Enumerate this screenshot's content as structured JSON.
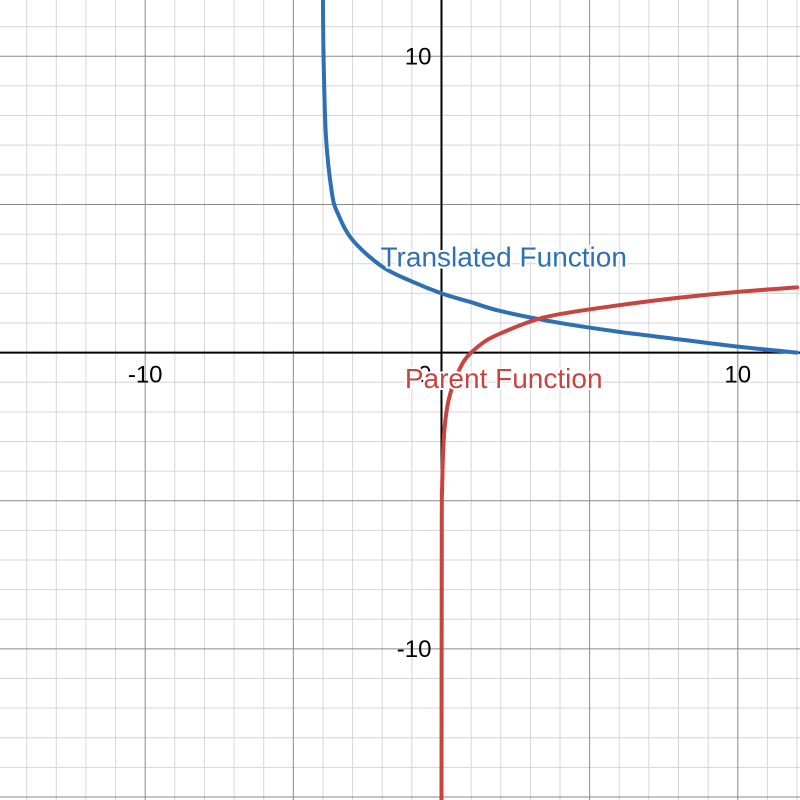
{
  "chart_data": {
    "type": "line",
    "title": "",
    "xlabel": "",
    "ylabel": "",
    "xlim": [
      -14.9,
      12.1
    ],
    "ylim": [
      -15.1,
      11.9
    ],
    "grid": true,
    "x_ticks": [
      {
        "value": -10,
        "label": "-10"
      },
      {
        "value": 0,
        "label": "0"
      },
      {
        "value": 10,
        "label": "10"
      }
    ],
    "y_ticks": [
      {
        "value": 10,
        "label": "10"
      },
      {
        "value": -10,
        "label": "-10"
      }
    ],
    "series": [
      {
        "name": "Translated Function",
        "color": "#2d70b3",
        "x": [
          -4.0,
          -3.98,
          -3.9,
          -3.7,
          -3.5,
          -3.0,
          -2.0,
          -1.0,
          0.0,
          1.0,
          2.0,
          4.0,
          6.0,
          8.0,
          10.0,
          12.0
        ],
        "y": [
          11.9,
          10.0,
          7.3,
          5.4,
          4.7,
          3.8,
          2.9,
          2.4,
          2.0,
          1.7,
          1.4,
          1.0,
          0.7,
          0.45,
          0.2,
          0.0
        ]
      },
      {
        "name": "Parent Function",
        "color": "#c74440",
        "x": [
          0.0,
          0.01,
          0.02,
          0.05,
          0.1,
          0.2,
          0.35,
          0.5,
          0.75,
          1.0,
          1.5,
          2.0,
          3.0,
          4.0,
          6.0,
          8.0,
          10.0,
          12.0
        ],
        "y": [
          -15.1,
          -5.6,
          -4.7,
          -3.5,
          -2.6,
          -1.8,
          -1.2,
          -0.8,
          -0.3,
          0.0,
          0.4,
          0.65,
          1.05,
          1.3,
          1.6,
          1.85,
          2.05,
          2.2
        ]
      }
    ],
    "annotations": [
      {
        "text": "Translated Function",
        "x": 2.1,
        "y": 2.9,
        "color": "#2d70b3",
        "series": "Translated Function"
      },
      {
        "text": "Parent Function",
        "x": 2.1,
        "y": -1.2,
        "color": "#c74440",
        "series": "Parent Function"
      }
    ]
  }
}
